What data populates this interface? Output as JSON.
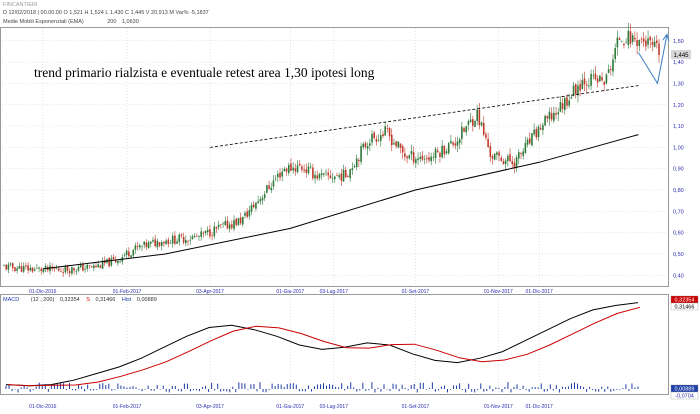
{
  "header": {
    "symbol": "FINCANTIERI",
    "ohlc_line": "D 12/02/2018 | 00.00.00   O 1,521   H 1,524   L 1,430   C 1,445   V 20,913 M   Var% -5,1837",
    "ema_label": "Medie Mobili Esponenziali (EMA)",
    "ema_period": "200",
    "ema_value": "1,0630"
  },
  "annotation": {
    "text": "trend primario rialzista e eventuale retest area 1,30 ipotesi long"
  },
  "colors": {
    "up": "#2d7a3a",
    "down": "#c0392b",
    "ema": "#000000",
    "trendline": "#000000",
    "arrow": "#3b7dc4",
    "macd": "#000000",
    "signal": "#cc0000",
    "hist": "#1f3fa8",
    "grid": "#c8c8c8",
    "axis_text": "#2b2bb0"
  },
  "price_axis": {
    "ticks": [
      "0,40",
      "0,50",
      "0,60",
      "0,70",
      "0,80",
      "0,90",
      "1,00",
      "1,10",
      "1,20",
      "1,30",
      "1,40",
      "1,50"
    ],
    "current": "1,445"
  },
  "date_axis": {
    "labels": [
      "01-Dic-2016",
      "01-Feb-2017",
      "03-Apr-2017",
      "01-Giu-2017",
      "03-Lug-2017",
      "01-Set-2017",
      "01-Nov-2017",
      "01-Dic-2017"
    ]
  },
  "macd_panel": {
    "label": "MACD",
    "params": "(12 , 200)",
    "macd_value": "0,32354",
    "signal_label": "S",
    "signal_value": "0,31466",
    "hist_label": "Hist",
    "hist_value": "0,00889",
    "right_labels": [
      "0,32354",
      "0,31466",
      "0,00889",
      "-0,0704"
    ]
  },
  "chart_data": {
    "type": "candlestick",
    "ylim": [
      0.35,
      1.56
    ],
    "price_path": [
      {
        "date": "2016-11-01",
        "close": 0.44
      },
      {
        "date": "2016-11-20",
        "close": 0.43
      },
      {
        "date": "2016-12-01",
        "close": 0.425
      },
      {
        "date": "2016-12-20",
        "close": 0.43
      },
      {
        "date": "2017-01-05",
        "close": 0.44
      },
      {
        "date": "2017-01-20",
        "close": 0.47
      },
      {
        "date": "2017-02-01",
        "close": 0.52
      },
      {
        "date": "2017-02-20",
        "close": 0.56
      },
      {
        "date": "2017-03-05",
        "close": 0.57
      },
      {
        "date": "2017-03-20",
        "close": 0.58
      },
      {
        "date": "2017-04-03",
        "close": 0.62
      },
      {
        "date": "2017-04-20",
        "close": 0.66
      },
      {
        "date": "2017-05-05",
        "close": 0.78
      },
      {
        "date": "2017-05-20",
        "close": 0.9
      },
      {
        "date": "2017-06-01",
        "close": 0.91
      },
      {
        "date": "2017-06-15",
        "close": 0.86
      },
      {
        "date": "2017-07-03",
        "close": 0.87
      },
      {
        "date": "2017-07-20",
        "close": 1.04
      },
      {
        "date": "2017-08-01",
        "close": 1.07
      },
      {
        "date": "2017-08-15",
        "close": 0.96
      },
      {
        "date": "2017-09-01",
        "close": 0.95
      },
      {
        "date": "2017-09-20",
        "close": 1.03
      },
      {
        "date": "2017-10-05",
        "close": 1.16
      },
      {
        "date": "2017-10-15",
        "close": 0.96
      },
      {
        "date": "2017-11-01",
        "close": 0.93
      },
      {
        "date": "2017-11-20",
        "close": 1.1
      },
      {
        "date": "2017-12-01",
        "close": 1.17
      },
      {
        "date": "2017-12-20",
        "close": 1.32
      },
      {
        "date": "2018-01-05",
        "close": 1.31
      },
      {
        "date": "2018-01-15",
        "close": 1.52
      },
      {
        "date": "2018-02-01",
        "close": 1.5
      },
      {
        "date": "2018-02-12",
        "close": 1.445
      }
    ],
    "ema200_path": [
      {
        "date": "2016-12-01",
        "value": 0.43
      },
      {
        "date": "2017-03-01",
        "value": 0.5
      },
      {
        "date": "2017-06-01",
        "value": 0.62
      },
      {
        "date": "2017-09-01",
        "value": 0.8
      },
      {
        "date": "2017-12-01",
        "value": 0.93
      },
      {
        "date": "2018-02-12",
        "value": 1.06
      }
    ],
    "trendline": [
      {
        "date": "2017-04-03",
        "value": 1.0
      },
      {
        "date": "2018-02-12",
        "value": 1.29
      }
    ],
    "projection": [
      {
        "date": "2018-02-12",
        "value": 1.445
      },
      {
        "date": "2018-02-26",
        "value": 1.3
      },
      {
        "date": "2018-03-05",
        "value": 1.53
      }
    ],
    "macd_path": [
      -0.05,
      -0.055,
      -0.05,
      -0.03,
      0.0,
      0.03,
      0.07,
      0.12,
      0.17,
      0.21,
      0.22,
      0.2,
      0.17,
      0.13,
      0.11,
      0.12,
      0.14,
      0.13,
      0.09,
      0.06,
      0.05,
      0.07,
      0.1,
      0.15,
      0.2,
      0.25,
      0.29,
      0.31,
      0.323
    ]
  }
}
